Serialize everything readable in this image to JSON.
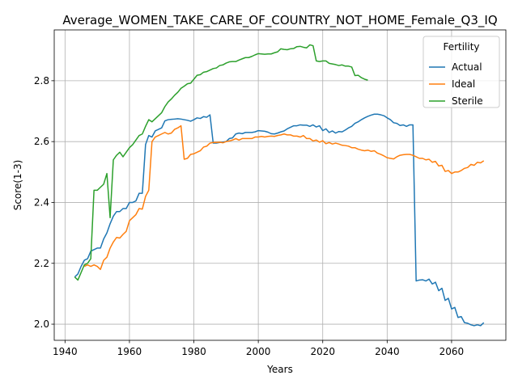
{
  "chart_data": {
    "type": "line",
    "title": "Average_WOMEN_TAKE_CARE_OF_COUNTRY_NOT_HOME_Female_Q3_IQ",
    "x_label": "Years",
    "y_label": "Score(1-3)",
    "legend_title": "Fertility",
    "legend": "upper right",
    "grid": true,
    "xlim": [
      1936.65,
      2076.85
    ],
    "ylim": [
      1.947,
      2.967
    ],
    "xticks": [
      1940,
      1960,
      1980,
      2000,
      2020,
      2040,
      2060
    ],
    "yticks": [
      {
        "value": 2,
        "label": "2.0"
      },
      2.2,
      2.4,
      2.6,
      2.8
    ],
    "x": [
      1943,
      1944,
      1945,
      1946,
      1947,
      1948,
      1949,
      1950,
      1951,
      1952,
      1953,
      1954,
      1955,
      1956,
      1957,
      1958,
      1959,
      1960,
      1961,
      1962,
      1963,
      1964,
      1965,
      1966,
      1967,
      1968,
      1969,
      1970,
      1971,
      1972,
      1973,
      1974,
      1975,
      1976,
      1977,
      1978,
      1979,
      1980,
      1981,
      1982,
      1983,
      1984,
      1985,
      1986,
      1987,
      1988,
      1989,
      1990,
      1991,
      1992,
      1993,
      1994,
      1995,
      1996,
      1997,
      1998,
      1999,
      2000,
      2001,
      2002,
      2003,
      2004,
      2005,
      2006,
      2007,
      2008,
      2009,
      2010,
      2011,
      2012,
      2013,
      2014,
      2015,
      2016,
      2017,
      2018,
      2019,
      2020,
      2021,
      2022,
      2023,
      2024,
      2025,
      2026,
      2027,
      2028,
      2029,
      2030,
      2031,
      2032,
      2033,
      2034,
      2035,
      2036,
      2037,
      2038,
      2039,
      2040,
      2041,
      2042,
      2043,
      2044,
      2045,
      2046,
      2047,
      2048,
      2049,
      2050,
      2051,
      2052,
      2053,
      2054,
      2055,
      2056,
      2057,
      2058,
      2059,
      2060,
      2061,
      2062,
      2063,
      2064,
      2065,
      2066,
      2067,
      2068,
      2069,
      2070
    ],
    "series": [
      {
        "name": "Actual",
        "color": "#1f77b4",
        "values": [
          2.155,
          2.165,
          2.19,
          2.21,
          2.215,
          2.24,
          2.245,
          2.25,
          2.25,
          2.28,
          2.3,
          2.33,
          2.355,
          2.37,
          2.37,
          2.38,
          2.38,
          2.4,
          2.4,
          2.405,
          2.43,
          2.43,
          2.59,
          2.62,
          2.615,
          2.635,
          2.64,
          2.645,
          2.668,
          2.672,
          2.673,
          2.674,
          2.675,
          2.674,
          2.672,
          2.67,
          2.667,
          2.672,
          2.678,
          2.676,
          2.682,
          2.68,
          2.688,
          2.595,
          2.595,
          2.597,
          2.598,
          2.6,
          2.61,
          2.612,
          2.625,
          2.628,
          2.626,
          2.63,
          2.63,
          2.63,
          2.632,
          2.636,
          2.635,
          2.634,
          2.631,
          2.626,
          2.625,
          2.628,
          2.632,
          2.635,
          2.642,
          2.647,
          2.652,
          2.652,
          2.655,
          2.654,
          2.654,
          2.65,
          2.655,
          2.648,
          2.652,
          2.636,
          2.642,
          2.63,
          2.635,
          2.628,
          2.633,
          2.632,
          2.638,
          2.645,
          2.65,
          2.66,
          2.665,
          2.672,
          2.678,
          2.683,
          2.687,
          2.69,
          2.69,
          2.688,
          2.685,
          2.678,
          2.672,
          2.662,
          2.66,
          2.653,
          2.655,
          2.65,
          2.655,
          2.655,
          2.142,
          2.145,
          2.146,
          2.142,
          2.148,
          2.132,
          2.138,
          2.11,
          2.118,
          2.078,
          2.085,
          2.05,
          2.055,
          2.022,
          2.025,
          2.005,
          2.003,
          1.998,
          1.995,
          1.998,
          1.995,
          2.005
        ]
      },
      {
        "name": "Ideal",
        "color": "#ff7f0e",
        "values": [
          null,
          null,
          null,
          2.19,
          2.195,
          2.19,
          2.195,
          2.19,
          2.18,
          2.21,
          2.22,
          2.25,
          2.27,
          2.285,
          2.283,
          2.295,
          2.305,
          2.34,
          2.35,
          2.36,
          2.38,
          2.378,
          2.42,
          2.44,
          2.6,
          2.615,
          2.62,
          2.625,
          2.63,
          2.625,
          2.628,
          2.64,
          2.645,
          2.652,
          2.542,
          2.545,
          2.558,
          2.56,
          2.565,
          2.57,
          2.582,
          2.585,
          2.595,
          2.597,
          2.597,
          2.598,
          2.596,
          2.6,
          2.602,
          2.605,
          2.61,
          2.605,
          2.61,
          2.61,
          2.61,
          2.61,
          2.615,
          2.615,
          2.617,
          2.615,
          2.617,
          2.618,
          2.617,
          2.62,
          2.622,
          2.625,
          2.622,
          2.622,
          2.618,
          2.618,
          2.615,
          2.62,
          2.61,
          2.61,
          2.602,
          2.605,
          2.598,
          2.603,
          2.593,
          2.597,
          2.592,
          2.595,
          2.592,
          2.588,
          2.587,
          2.585,
          2.58,
          2.58,
          2.575,
          2.572,
          2.57,
          2.572,
          2.568,
          2.57,
          2.562,
          2.558,
          2.553,
          2.547,
          2.545,
          2.543,
          2.55,
          2.555,
          2.557,
          2.558,
          2.558,
          2.555,
          2.55,
          2.545,
          2.545,
          2.54,
          2.542,
          2.532,
          2.535,
          2.52,
          2.522,
          2.502,
          2.505,
          2.495,
          2.5,
          2.5,
          2.505,
          2.512,
          2.515,
          2.525,
          2.522,
          2.532,
          2.53,
          2.537
        ]
      },
      {
        "name": "Sterile",
        "color": "#2ca02c",
        "values": [
          2.155,
          2.145,
          2.17,
          2.195,
          2.2,
          2.215,
          2.44,
          2.44,
          2.45,
          2.46,
          2.495,
          2.35,
          2.54,
          2.555,
          2.565,
          2.55,
          2.565,
          2.58,
          2.59,
          2.605,
          2.62,
          2.625,
          2.65,
          2.672,
          2.665,
          2.675,
          2.685,
          2.695,
          2.715,
          2.73,
          2.74,
          2.752,
          2.762,
          2.775,
          2.782,
          2.79,
          2.792,
          2.805,
          2.818,
          2.82,
          2.828,
          2.83,
          2.835,
          2.84,
          2.842,
          2.85,
          2.852,
          2.858,
          2.862,
          2.863,
          2.863,
          2.868,
          2.872,
          2.876,
          2.876,
          2.88,
          2.885,
          2.889,
          2.888,
          2.887,
          2.888,
          2.888,
          2.892,
          2.895,
          2.905,
          2.903,
          2.902,
          2.905,
          2.906,
          2.912,
          2.913,
          2.91,
          2.908,
          2.918,
          2.915,
          2.865,
          2.863,
          2.865,
          2.865,
          2.857,
          2.855,
          2.853,
          2.85,
          2.852,
          2.848,
          2.848,
          2.845,
          2.817,
          2.818,
          2.81,
          2.805,
          2.802,
          null,
          null,
          null,
          null,
          null,
          null,
          null,
          null,
          null,
          null,
          null,
          null,
          null,
          null,
          null,
          null,
          null,
          null,
          null,
          null,
          null,
          null,
          null,
          null,
          null,
          null,
          null,
          null,
          null,
          null,
          null,
          null,
          null,
          null,
          null,
          null
        ]
      }
    ]
  }
}
